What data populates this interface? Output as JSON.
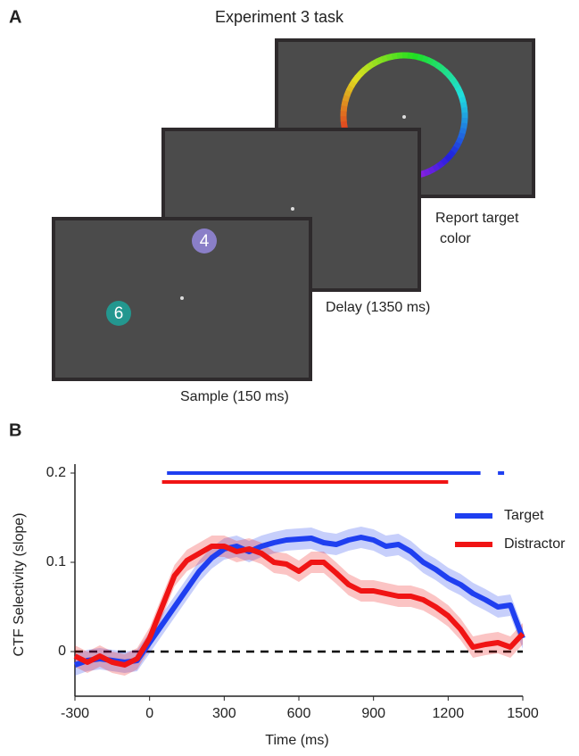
{
  "panel_a": {
    "label": "A",
    "title": "Experiment 3 task",
    "screens": [
      {
        "caption": "Report target",
        "caption2": "color"
      },
      {
        "caption": "Delay (1350 ms)"
      },
      {
        "caption": "Sample (150 ms)",
        "items": [
          "4",
          "6"
        ]
      }
    ]
  },
  "chart_data": {
    "type": "line",
    "panel_label": "B",
    "xlabel": "Time (ms)",
    "ylabel": "CTF Selectivity (slope)",
    "xlim": [
      -300,
      1500
    ],
    "ylim": [
      -0.05,
      0.21
    ],
    "xticks": [
      -300,
      0,
      300,
      600,
      900,
      1200,
      1500
    ],
    "yticks": [
      0,
      0.1,
      0.2
    ],
    "reference_line": 0,
    "x": [
      -300,
      -250,
      -200,
      -150,
      -100,
      -50,
      0,
      50,
      100,
      150,
      200,
      250,
      300,
      350,
      400,
      450,
      500,
      550,
      600,
      650,
      700,
      750,
      800,
      850,
      900,
      950,
      1000,
      1050,
      1100,
      1150,
      1200,
      1250,
      1300,
      1350,
      1400,
      1450,
      1500
    ],
    "series": [
      {
        "name": "Target",
        "color": "#1f3ff0",
        "error": 0.012,
        "sig_level": 0.2,
        "significant": [
          [
            70,
            1330
          ],
          [
            1400,
            1425
          ]
        ],
        "values": [
          -0.015,
          -0.01,
          -0.008,
          -0.01,
          -0.012,
          -0.01,
          0.01,
          0.03,
          0.05,
          0.07,
          0.09,
          0.105,
          0.115,
          0.118,
          0.112,
          0.118,
          0.122,
          0.125,
          0.126,
          0.127,
          0.122,
          0.12,
          0.125,
          0.128,
          0.125,
          0.118,
          0.12,
          0.112,
          0.1,
          0.092,
          0.082,
          0.075,
          0.065,
          0.058,
          0.05,
          0.052,
          0.015
        ]
      },
      {
        "name": "Distractor",
        "color": "#f01414",
        "error": 0.012,
        "sig_level": 0.19,
        "significant": [
          [
            50,
            1200
          ]
        ],
        "values": [
          -0.005,
          -0.012,
          -0.005,
          -0.012,
          -0.015,
          -0.008,
          0.015,
          0.05,
          0.085,
          0.102,
          0.11,
          0.118,
          0.118,
          0.112,
          0.115,
          0.11,
          0.1,
          0.098,
          0.09,
          0.1,
          0.1,
          0.088,
          0.075,
          0.068,
          0.068,
          0.065,
          0.062,
          0.062,
          0.058,
          0.05,
          0.04,
          0.025,
          0.005,
          0.008,
          0.01,
          0.005,
          0.02
        ]
      }
    ]
  }
}
